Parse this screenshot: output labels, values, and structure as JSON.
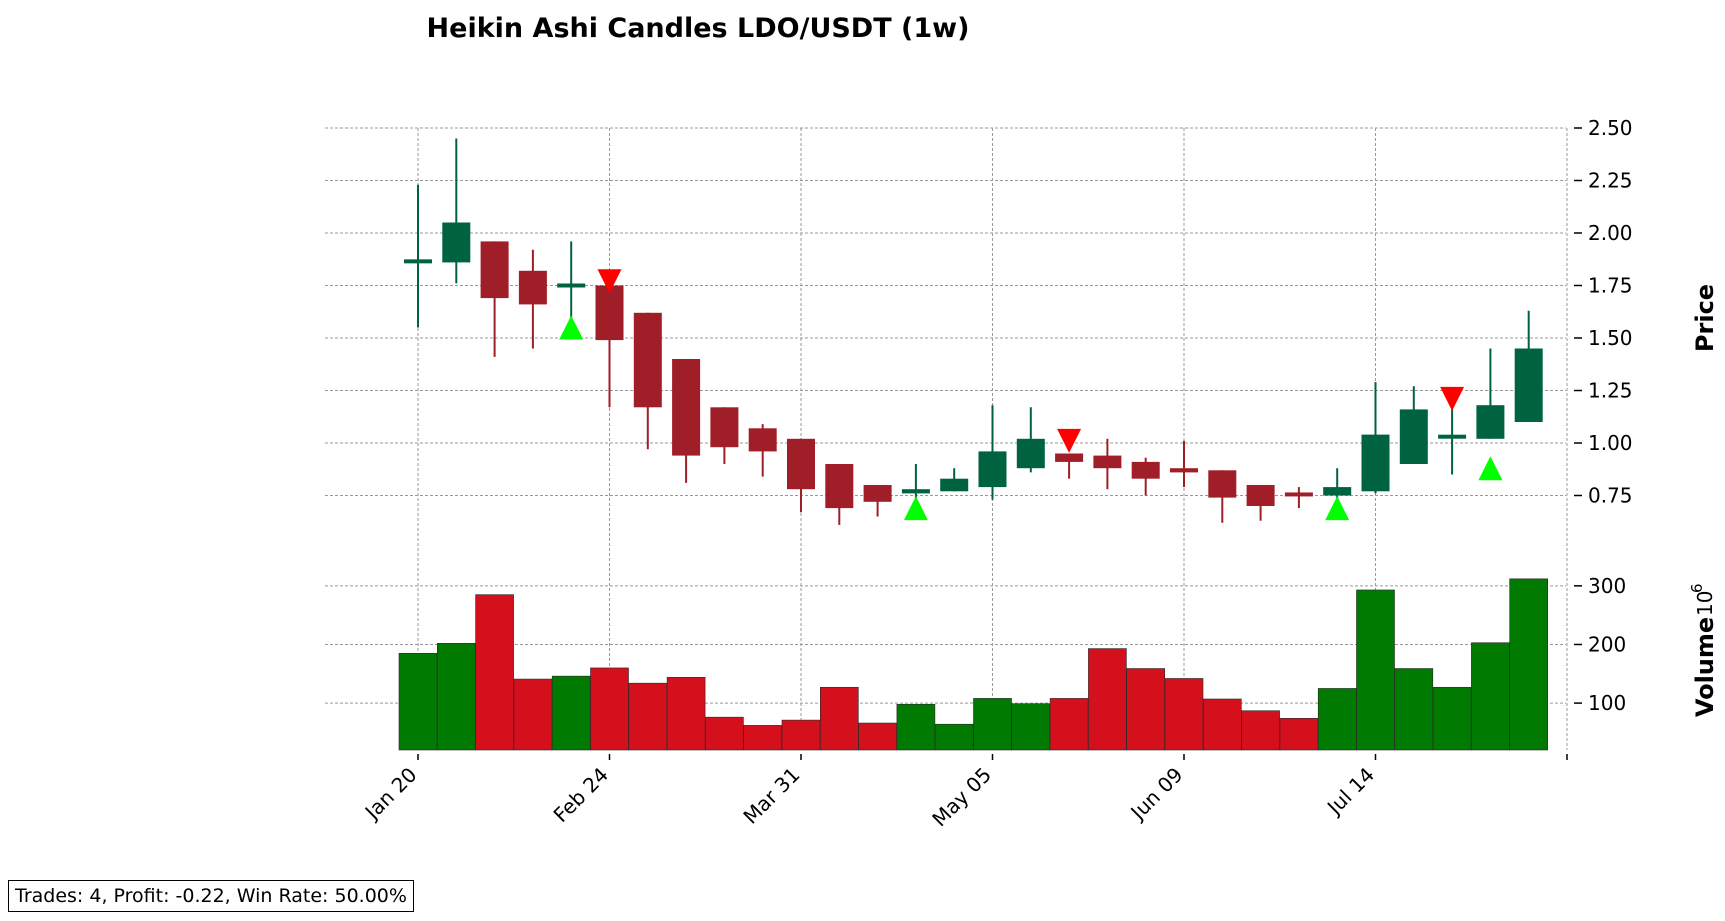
{
  "chart_data": {
    "type": "candlestick",
    "title": "Heikin Ashi Candles LDO/USDT (1w)",
    "price_panel": {
      "ylabel": "Price",
      "ylim": [
        0.5,
        2.5
      ],
      "yticks": [
        0.75,
        1.0,
        1.25,
        1.5,
        1.75,
        2.0,
        2.25,
        2.5
      ],
      "ytick_labels": [
        "0.75",
        "1.00",
        "1.25",
        "1.50",
        "1.75",
        "2.00",
        "2.25",
        "2.50"
      ],
      "grid": true
    },
    "volume_panel": {
      "ylabel": "Volume",
      "exponent_label": "10",
      "exponent_power": "6",
      "ylim": [
        20,
        310
      ],
      "yticks": [
        100,
        200,
        300
      ],
      "ytick_labels": [
        "100",
        "200",
        "300"
      ],
      "grid": true
    },
    "xtick_labels": [
      {
        "i": 0,
        "label": "Jan 20"
      },
      {
        "i": 5,
        "label": "Feb 24"
      },
      {
        "i": 10,
        "label": "Mar 31"
      },
      {
        "i": 15,
        "label": "May 05"
      },
      {
        "i": 20,
        "label": "Jun 09"
      },
      {
        "i": 25,
        "label": "Jul 14"
      }
    ],
    "colors": {
      "up_candle": "#006340",
      "down_candle": "#a01e28",
      "up_volume": "#007a00",
      "down_volume": "#d3101b",
      "buy_marker": "#00ff00",
      "sell_marker": "#ff0000"
    },
    "candles": [
      {
        "open": 1.86,
        "high": 2.23,
        "low": 1.55,
        "close": 1.87,
        "volume": 185
      },
      {
        "open": 1.86,
        "high": 2.45,
        "low": 1.76,
        "close": 2.05,
        "volume": 202
      },
      {
        "open": 1.96,
        "high": 1.96,
        "low": 1.41,
        "close": 1.69,
        "volume": 285
      },
      {
        "open": 1.82,
        "high": 1.92,
        "low": 1.45,
        "close": 1.66,
        "volume": 141
      },
      {
        "open": 1.75,
        "high": 1.96,
        "low": 1.55,
        "close": 1.75,
        "volume": 146
      },
      {
        "open": 1.75,
        "high": 1.75,
        "low": 1.17,
        "close": 1.49,
        "volume": 160
      },
      {
        "open": 1.62,
        "high": 1.62,
        "low": 0.97,
        "close": 1.17,
        "volume": 134
      },
      {
        "open": 1.4,
        "high": 1.4,
        "low": 0.81,
        "close": 0.94,
        "volume": 144
      },
      {
        "open": 1.17,
        "high": 1.17,
        "low": 0.9,
        "close": 0.98,
        "volume": 76
      },
      {
        "open": 1.07,
        "high": 1.09,
        "low": 0.84,
        "close": 0.96,
        "volume": 62
      },
      {
        "open": 1.02,
        "high": 1.02,
        "low": 0.67,
        "close": 0.78,
        "volume": 71
      },
      {
        "open": 0.9,
        "high": 0.9,
        "low": 0.61,
        "close": 0.69,
        "volume": 127
      },
      {
        "open": 0.8,
        "high": 0.8,
        "low": 0.65,
        "close": 0.72,
        "volume": 66
      },
      {
        "open": 0.76,
        "high": 0.9,
        "low": 0.72,
        "close": 0.78,
        "volume": 98
      },
      {
        "open": 0.77,
        "high": 0.88,
        "low": 0.77,
        "close": 0.83,
        "volume": 64
      },
      {
        "open": 0.79,
        "high": 1.18,
        "low": 0.73,
        "close": 0.96,
        "volume": 108
      },
      {
        "open": 0.88,
        "high": 1.17,
        "low": 0.86,
        "close": 1.02,
        "volume": 99
      },
      {
        "open": 0.95,
        "high": 0.95,
        "low": 0.83,
        "close": 0.91,
        "volume": 108
      },
      {
        "open": 0.94,
        "high": 1.02,
        "low": 0.78,
        "close": 0.88,
        "volume": 193
      },
      {
        "open": 0.91,
        "high": 0.93,
        "low": 0.75,
        "close": 0.83,
        "volume": 159
      },
      {
        "open": 0.88,
        "high": 1.01,
        "low": 0.79,
        "close": 0.86,
        "volume": 142
      },
      {
        "open": 0.87,
        "high": 0.87,
        "low": 0.62,
        "close": 0.74,
        "volume": 107
      },
      {
        "open": 0.8,
        "high": 0.8,
        "low": 0.63,
        "close": 0.7,
        "volume": 87
      },
      {
        "open": 0.76,
        "high": 0.79,
        "low": 0.69,
        "close": 0.75,
        "volume": 74
      },
      {
        "open": 0.75,
        "high": 0.88,
        "low": 0.73,
        "close": 0.79,
        "volume": 125
      },
      {
        "open": 0.77,
        "high": 1.29,
        "low": 0.76,
        "close": 1.04,
        "volume": 293
      },
      {
        "open": 0.9,
        "high": 1.27,
        "low": 0.9,
        "close": 1.16,
        "volume": 159
      },
      {
        "open": 1.03,
        "high": 1.16,
        "low": 0.85,
        "close": 1.03,
        "volume": 127
      },
      {
        "open": 1.02,
        "high": 1.45,
        "low": 1.02,
        "close": 1.18,
        "volume": 203
      },
      {
        "open": 1.1,
        "high": 1.63,
        "low": 1.1,
        "close": 1.45,
        "volume": 312
      }
    ],
    "buy_markers": [
      {
        "i": 4,
        "price": 1.55
      },
      {
        "i": 13,
        "price": 0.69
      },
      {
        "i": 24,
        "price": 0.69
      },
      {
        "i": 28,
        "price": 0.88
      }
    ],
    "sell_markers": [
      {
        "i": 5,
        "price": 1.77
      },
      {
        "i": 17,
        "price": 1.01
      },
      {
        "i": 27,
        "price": 1.21
      }
    ]
  },
  "stats": {
    "text": "Trades: 4, Profit: -0.22, Win Rate: 50.00%"
  }
}
